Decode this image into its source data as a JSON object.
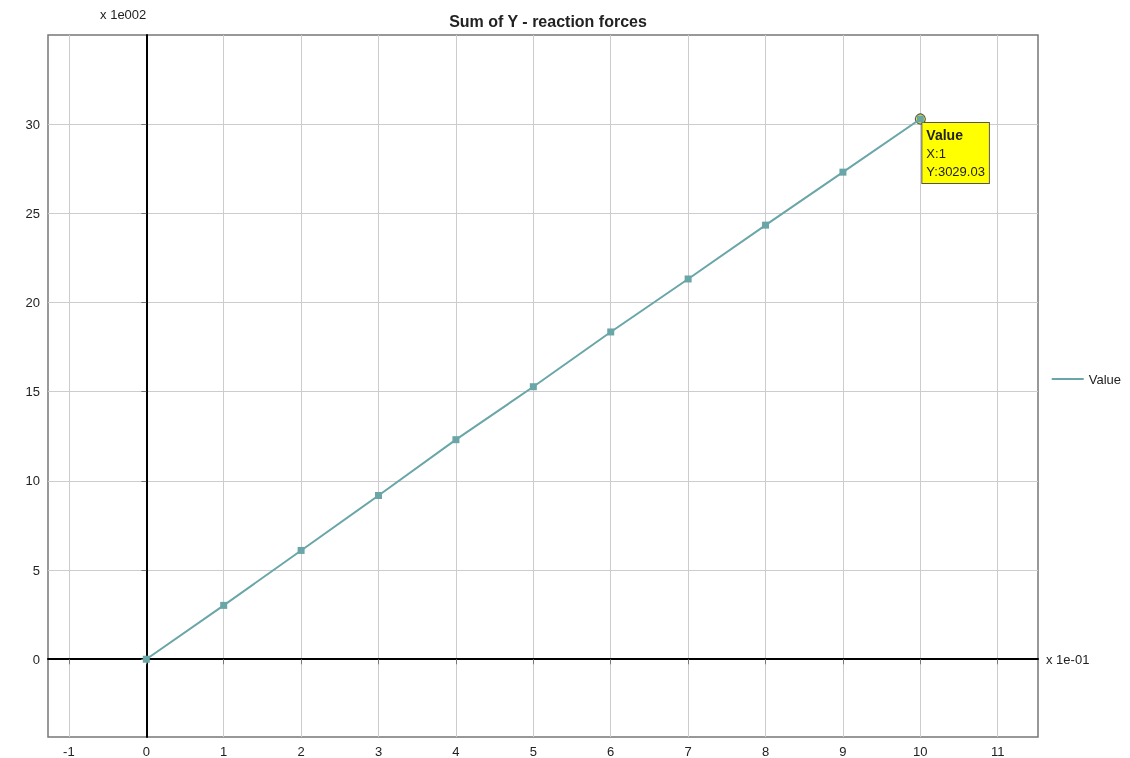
{
  "chart_data": {
    "type": "line",
    "title": "Sum of Y - reaction forces",
    "xlabel": "x 1e-01",
    "ylabel": "x 1e002",
    "x": [
      0,
      1,
      2,
      3,
      4,
      5,
      6,
      7,
      8,
      9,
      10
    ],
    "series": [
      {
        "name": "Value",
        "color": "#6aa6a8",
        "values": [
          0,
          3.02,
          6.1,
          9.18,
          12.31,
          15.28,
          18.35,
          21.32,
          24.34,
          27.31,
          30.29
        ]
      }
    ],
    "xlim": [
      -1.27,
      11.52
    ],
    "xticks": [
      -1,
      0,
      1,
      2,
      3,
      4,
      5,
      6,
      7,
      8,
      9,
      10,
      11
    ],
    "ylim": [
      -4.36,
      35
    ],
    "yticks": [
      0,
      5,
      10,
      15,
      20,
      25,
      30
    ],
    "annotations": [
      {
        "text": "Value\nX:1\nY:3029.03",
        "x": 10,
        "y": 30.29
      }
    ],
    "grid": true,
    "legend": "right",
    "marker": "square",
    "line_style": "solid"
  }
}
